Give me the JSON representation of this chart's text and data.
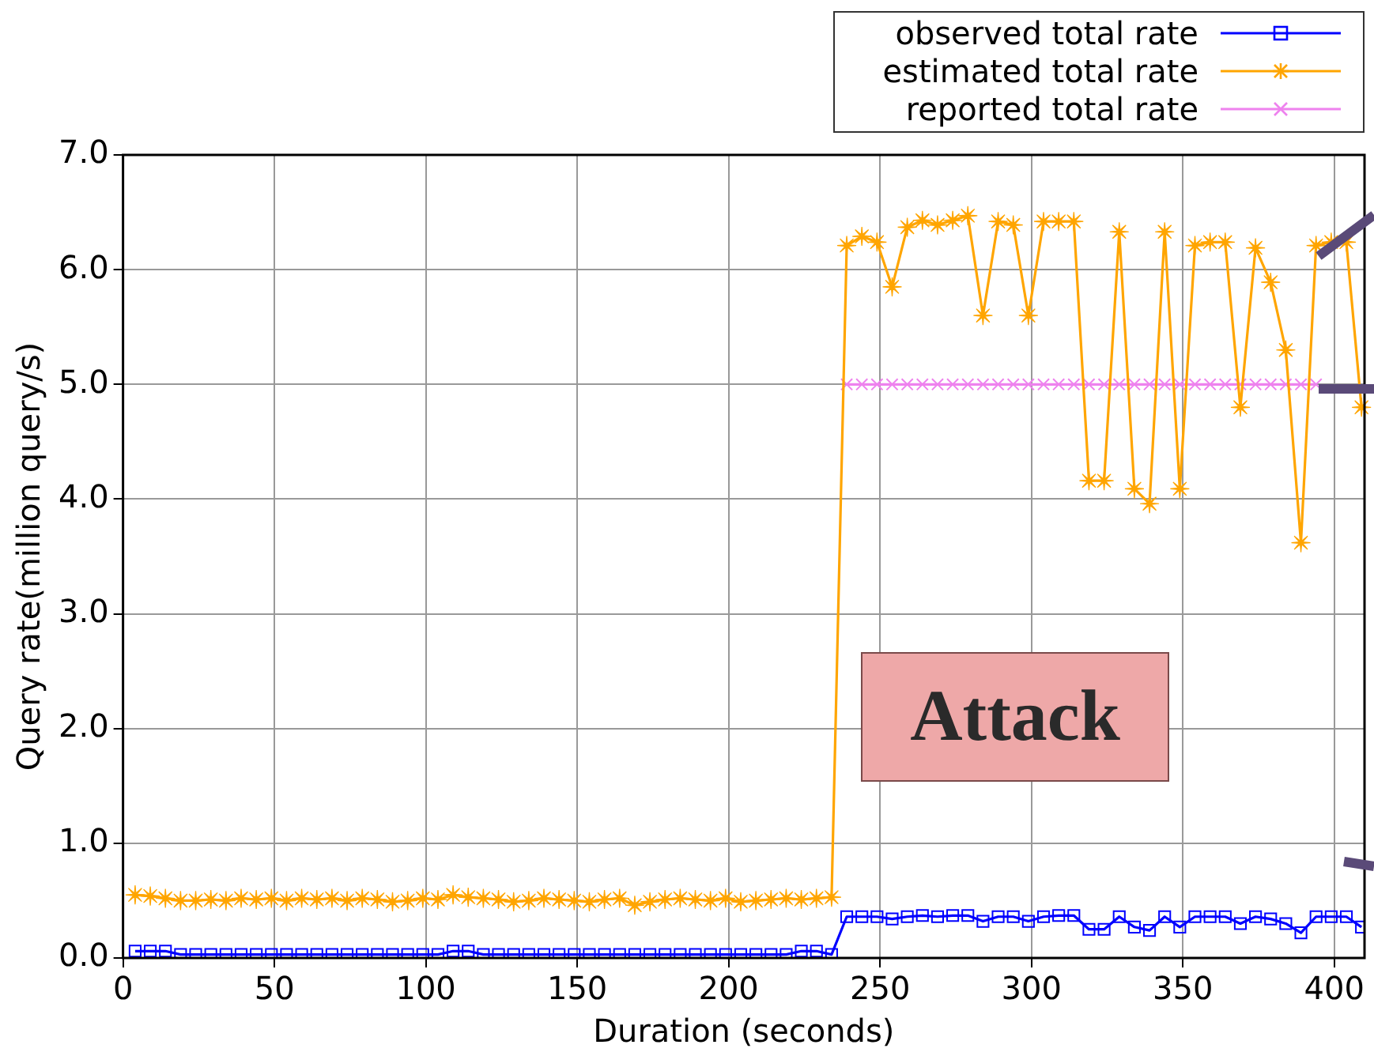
{
  "chart_data": {
    "type": "line",
    "xlabel": "Duration (seconds)",
    "ylabel": "Query rate(million query/s)",
    "x": [
      4,
      9,
      14,
      19,
      24,
      29,
      34,
      39,
      44,
      49,
      54,
      59,
      64,
      69,
      74,
      79,
      84,
      89,
      94,
      99,
      104,
      109,
      114,
      119,
      124,
      129,
      134,
      139,
      144,
      149,
      154,
      159,
      164,
      169,
      174,
      179,
      184,
      189,
      194,
      199,
      204,
      209,
      214,
      219,
      224,
      229,
      234,
      239,
      244,
      249,
      254,
      259,
      264,
      269,
      274,
      279,
      284,
      289,
      294,
      299,
      304,
      309,
      314,
      319,
      324,
      329,
      334,
      339,
      344,
      349,
      354,
      359,
      364,
      369,
      374,
      379,
      384,
      389,
      394,
      399,
      404,
      409
    ],
    "xlim": [
      0,
      410
    ],
    "xticks": [
      0,
      50,
      100,
      150,
      200,
      250,
      300,
      350,
      400
    ],
    "ylim": [
      0,
      7
    ],
    "yticks": [
      {
        "value": 0,
        "label": "0.0"
      },
      {
        "value": 1,
        "label": "1.0"
      },
      {
        "value": 2,
        "label": "2.0"
      },
      {
        "value": 3,
        "label": "3.0"
      },
      {
        "value": 4,
        "label": "4.0"
      },
      {
        "value": 5,
        "label": "5.0"
      },
      {
        "value": 6,
        "label": "6.0"
      },
      {
        "value": 7,
        "label": "7.0"
      }
    ],
    "grid": true,
    "legend": "top right",
    "annotations": [
      "Attack"
    ],
    "series": [
      {
        "name": "observed total rate",
        "color": "#0000ff",
        "marker": "square",
        "values": [
          0.06,
          0.06,
          0.06,
          0.03,
          0.03,
          0.03,
          0.03,
          0.03,
          0.03,
          0.03,
          0.03,
          0.03,
          0.03,
          0.03,
          0.03,
          0.03,
          0.03,
          0.03,
          0.03,
          0.03,
          0.03,
          0.06,
          0.06,
          0.03,
          0.03,
          0.03,
          0.03,
          0.03,
          0.03,
          0.03,
          0.03,
          0.03,
          0.03,
          0.03,
          0.03,
          0.03,
          0.03,
          0.03,
          0.03,
          0.03,
          0.03,
          0.03,
          0.03,
          0.03,
          0.06,
          0.06,
          0.03,
          0.36,
          0.36,
          0.36,
          0.34,
          0.36,
          0.37,
          0.36,
          0.37,
          0.37,
          0.32,
          0.36,
          0.36,
          0.32,
          0.36,
          0.37,
          0.37,
          0.25,
          0.25,
          0.36,
          0.27,
          0.24,
          0.36,
          0.27,
          0.36,
          0.36,
          0.36,
          0.3,
          0.36,
          0.34,
          0.3,
          0.22,
          0.36,
          0.36,
          0.36,
          0.27
        ]
      },
      {
        "name": "estimated total rate",
        "color": "#ffa500",
        "marker": "star",
        "values": [
          0.55,
          0.54,
          0.52,
          0.5,
          0.5,
          0.51,
          0.5,
          0.52,
          0.51,
          0.52,
          0.5,
          0.52,
          0.51,
          0.52,
          0.5,
          0.52,
          0.51,
          0.49,
          0.5,
          0.52,
          0.51,
          0.55,
          0.53,
          0.52,
          0.51,
          0.49,
          0.5,
          0.52,
          0.51,
          0.5,
          0.49,
          0.51,
          0.52,
          0.46,
          0.49,
          0.51,
          0.52,
          0.51,
          0.5,
          0.52,
          0.49,
          0.5,
          0.51,
          0.52,
          0.51,
          0.52,
          0.53,
          6.21,
          6.29,
          6.24,
          5.85,
          6.37,
          6.43,
          6.39,
          6.43,
          6.47,
          5.6,
          6.42,
          6.39,
          5.6,
          6.42,
          6.42,
          6.42,
          4.16,
          4.16,
          6.33,
          4.09,
          3.96,
          6.33,
          4.09,
          6.21,
          6.24,
          6.24,
          4.8,
          6.19,
          5.89,
          5.3,
          3.62,
          6.21,
          6.24,
          6.24,
          4.8
        ]
      },
      {
        "name": "reported total rate",
        "color": "#ee82ee",
        "marker": "cross",
        "values": [
          null,
          null,
          null,
          null,
          null,
          null,
          null,
          null,
          null,
          null,
          null,
          null,
          null,
          null,
          null,
          null,
          null,
          null,
          null,
          null,
          null,
          null,
          null,
          null,
          null,
          null,
          null,
          null,
          null,
          null,
          null,
          null,
          null,
          null,
          null,
          null,
          null,
          null,
          null,
          null,
          null,
          null,
          null,
          null,
          null,
          null,
          null,
          5,
          5,
          5,
          5,
          5,
          5,
          5,
          5,
          5,
          5,
          5,
          5,
          5,
          5,
          5,
          5,
          5,
          5,
          5,
          5,
          5,
          5,
          5,
          5,
          5,
          5,
          5,
          5,
          5,
          5,
          5,
          5,
          null,
          null,
          null
        ]
      }
    ]
  }
}
